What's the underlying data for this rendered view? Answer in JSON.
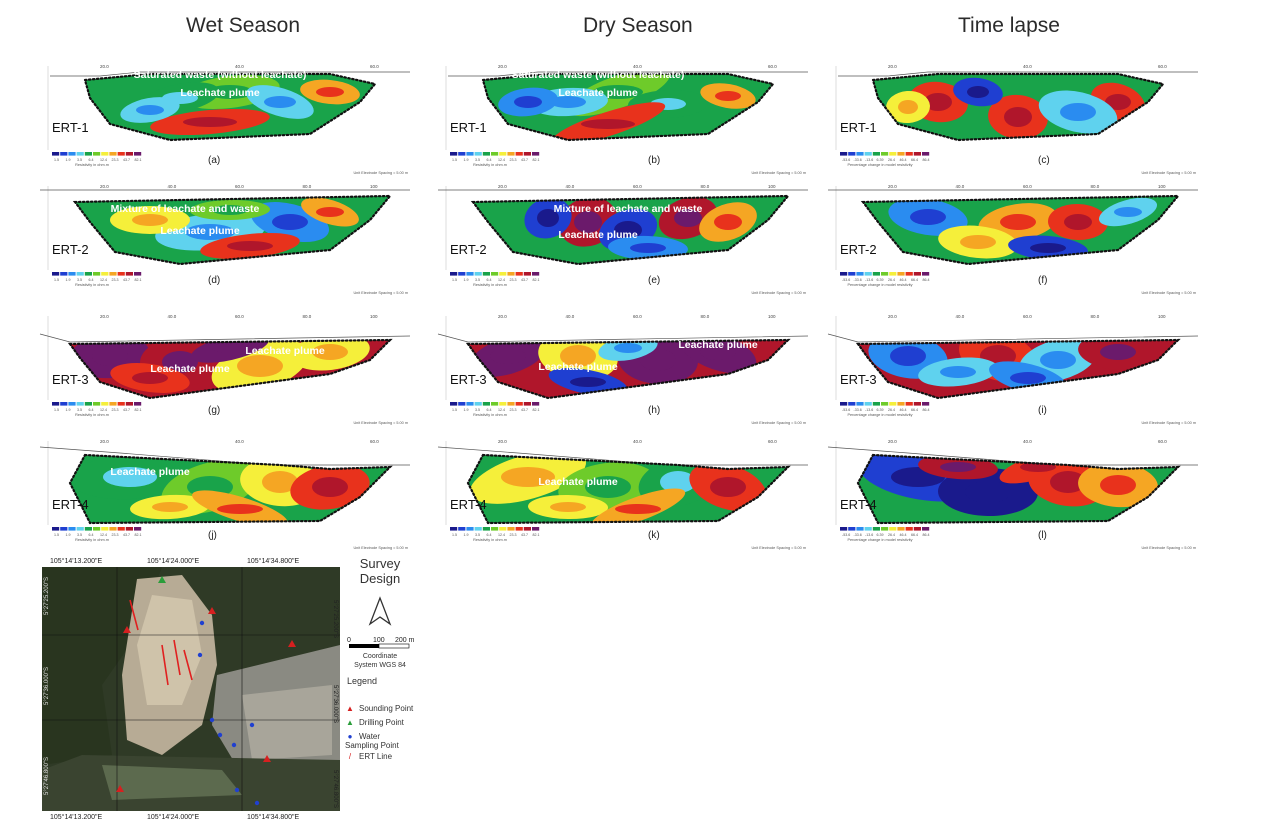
{
  "columns": [
    {
      "header": "Wet Season",
      "scale_caption": "Resistivity in ohm.m",
      "scale_ticks": [
        "1.5",
        "1.9",
        "3.5",
        "6.4",
        "12.4",
        "23.3",
        "43.7",
        "82.1"
      ]
    },
    {
      "header": "Dry Season",
      "scale_caption": "Resistivity in ohm.m",
      "scale_ticks": [
        "1.5",
        "1.9",
        "3.5",
        "6.4",
        "12.4",
        "23.3",
        "43.7",
        "82.1"
      ]
    },
    {
      "header": "Time lapse",
      "scale_caption": "Percentage change in model resistivity",
      "scale_ticks": [
        "-53.6",
        "-33.6",
        "-13.6",
        "6.39",
        "26.4",
        "46.4",
        "66.4",
        "86.4"
      ]
    }
  ],
  "spacing_note": "Unit Electrode Spacing = 5.00 m",
  "panels": [
    {
      "id": "a",
      "line": "ERT-1",
      "letter": "(a)",
      "labels": [
        "Saturated waste (without leachate)",
        "Leachate plume"
      ],
      "ticks": [
        "20.0",
        "40.0",
        "60.0"
      ]
    },
    {
      "id": "b",
      "line": "ERT-1",
      "letter": "(b)",
      "labels": [
        "Saturated waste (without leachate)",
        "Leachate plume"
      ],
      "ticks": [
        "20.0",
        "40.0",
        "60.0"
      ]
    },
    {
      "id": "c",
      "line": "ERT-1",
      "letter": "(c)",
      "labels": [],
      "ticks": [
        "20.0",
        "40.0",
        "60.0"
      ]
    },
    {
      "id": "d",
      "line": "ERT-2",
      "letter": "(d)",
      "labels": [
        "Mixture of leachate and waste",
        "Leachate plume"
      ],
      "ticks": [
        "20.0",
        "40.0",
        "60.0",
        "80.0",
        "100"
      ]
    },
    {
      "id": "e",
      "line": "ERT-2",
      "letter": "(e)",
      "labels": [
        "Mixture of leachate and waste",
        "Leachate plume"
      ],
      "ticks": [
        "20.0",
        "40.0",
        "60.0",
        "80.0",
        "100"
      ]
    },
    {
      "id": "f",
      "line": "ERT-2",
      "letter": "(f)",
      "labels": [],
      "ticks": [
        "20.0",
        "40.0",
        "60.0",
        "80.0",
        "100"
      ]
    },
    {
      "id": "g",
      "line": "ERT-3",
      "letter": "(g)",
      "labels": [
        "Leachate plume",
        "Leachate plume"
      ],
      "ticks": [
        "20.0",
        "40.0",
        "60.0",
        "80.0",
        "100"
      ]
    },
    {
      "id": "h",
      "line": "ERT-3",
      "letter": "(h)",
      "labels": [
        "Leachate plume",
        "Leachate plume"
      ],
      "ticks": [
        "20.0",
        "40.0",
        "60.0",
        "80.0",
        "100"
      ]
    },
    {
      "id": "i",
      "line": "ERT-3",
      "letter": "(i)",
      "labels": [],
      "ticks": [
        "20.0",
        "40.0",
        "60.0",
        "80.0",
        "100"
      ]
    },
    {
      "id": "j",
      "line": "ERT-4",
      "letter": "(j)",
      "labels": [
        "Leachate plume"
      ],
      "ticks": [
        "20.0",
        "40.0",
        "60.0"
      ]
    },
    {
      "id": "k",
      "line": "ERT-4",
      "letter": "(k)",
      "labels": [
        "Leachate plume"
      ],
      "ticks": [
        "20.0",
        "40.0",
        "60.0"
      ]
    },
    {
      "id": "l",
      "line": "ERT-4",
      "letter": "(l)",
      "labels": [],
      "ticks": [
        "20.0",
        "40.0",
        "60.0"
      ]
    }
  ],
  "palette": [
    "#1a1a8c",
    "#1f3fd1",
    "#2a8cf0",
    "#5fd2ee",
    "#19a34a",
    "#6ecb2a",
    "#f5ef3a",
    "#f5a623",
    "#e8321c",
    "#b0162b",
    "#6b1a6b"
  ],
  "map": {
    "top_coords": [
      "105°14'13.200\"E",
      "105°14'24.000\"E",
      "105°14'34.800\"E"
    ],
    "bottom_coords": [
      "105°14'13.200\"E",
      "105°14'24.000\"E",
      "105°14'34.800\"E"
    ],
    "right_coords": [
      "5°27'25.200\"S",
      "5°27'36.000\"S",
      "5°27'46.800\"S"
    ],
    "left_coords": [
      "5°27'25.200\"S",
      "5°27'36.000\"S",
      "5°27'46.800\"S"
    ]
  },
  "legend": {
    "title_line1": "Survey",
    "title_line2": "Design",
    "scale_labels": [
      "0",
      "100",
      "200 m"
    ],
    "coord_line1": "Coordinate",
    "coord_line2": "System WGS 84",
    "legend_title": "Legend",
    "items": [
      {
        "label": "Sounding Point",
        "color": "#d62020",
        "symbol": "triangle"
      },
      {
        "label": "Drilling Point",
        "color": "#2a9d3a",
        "symbol": "triangle"
      },
      {
        "label": "Water Sampling Point",
        "color": "#2040d0",
        "symbol": "dot"
      },
      {
        "label": "ERT Line",
        "color": "#d62020",
        "symbol": "line"
      }
    ]
  }
}
